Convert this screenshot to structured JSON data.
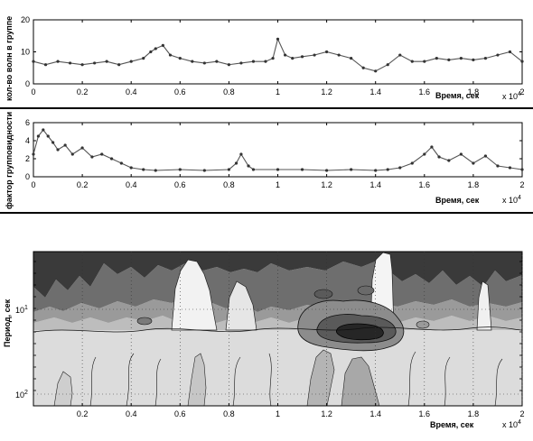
{
  "chart_data": [
    {
      "type": "line",
      "title": "",
      "xlabel": "Время, сек",
      "ylabel": "кол-во волн в группе",
      "x_multiplier": "x 10^4",
      "x_multiplier_base": "x 10",
      "x_multiplier_exp": "4",
      "xlim": [
        0,
        20000
      ],
      "ylim": [
        0,
        20
      ],
      "x_ticks": [
        "0",
        "0.2",
        "0.4",
        "0.6",
        "0.8",
        "1",
        "1.2",
        "1.4",
        "1.6",
        "1.8",
        "2"
      ],
      "y_ticks": [
        "0",
        "10",
        "20"
      ],
      "grid": false,
      "marker": "dot",
      "series": [
        {
          "x": [
            0,
            500,
            1000,
            1500,
            2000,
            2500,
            3000,
            3500,
            4000,
            4500,
            4800,
            5000,
            5300,
            5600,
            6000,
            6500,
            7000,
            7500,
            8000,
            8500,
            9000,
            9500,
            9800,
            10000,
            10300,
            10600,
            11000,
            11500,
            12000,
            12500,
            13000,
            13500,
            14000,
            14500,
            15000,
            15500,
            16000,
            16500,
            17000,
            17500,
            18000,
            18500,
            19000,
            19500,
            20000
          ],
          "values": [
            7,
            6,
            7,
            6.5,
            6,
            6.5,
            7,
            6,
            7,
            8,
            10,
            11,
            12,
            9,
            8,
            7,
            6.5,
            7,
            6,
            6.5,
            7,
            7,
            8,
            14,
            9,
            8,
            8.5,
            9,
            10,
            9,
            8,
            5,
            4,
            6,
            9,
            7,
            7,
            8,
            7.5,
            8,
            7.5,
            8,
            9,
            10,
            7
          ]
        }
      ]
    },
    {
      "type": "line",
      "title": "",
      "xlabel": "Время, сек",
      "ylabel": "фактор групповидности",
      "x_multiplier": "x 10^4",
      "x_multiplier_base": "x 10",
      "x_multiplier_exp": "4",
      "xlim": [
        0,
        20000
      ],
      "ylim": [
        0,
        6
      ],
      "x_ticks": [
        "0",
        "0.2",
        "0.4",
        "0.6",
        "0.8",
        "1",
        "1.2",
        "1.4",
        "1.6",
        "1.8",
        "2"
      ],
      "y_ticks": [
        "0",
        "2",
        "4",
        "6"
      ],
      "grid": false,
      "marker": "dot",
      "series": [
        {
          "x": [
            0,
            200,
            400,
            600,
            800,
            1000,
            1300,
            1600,
            2000,
            2400,
            2800,
            3200,
            3600,
            4000,
            4500,
            5000,
            6000,
            7000,
            8000,
            8300,
            8500,
            8800,
            9000,
            10000,
            11000,
            12000,
            13000,
            14000,
            14500,
            15000,
            15500,
            16000,
            16300,
            16600,
            17000,
            17500,
            18000,
            18500,
            19000,
            19500,
            20000
          ],
          "values": [
            2.5,
            4.5,
            5.2,
            4.5,
            3.8,
            3.0,
            3.5,
            2.5,
            3.2,
            2.2,
            2.5,
            2.0,
            1.5,
            1.0,
            0.8,
            0.7,
            0.8,
            0.7,
            0.8,
            1.5,
            2.5,
            1.2,
            0.8,
            0.8,
            0.8,
            0.7,
            0.8,
            0.7,
            0.8,
            1.0,
            1.5,
            2.5,
            3.3,
            2.2,
            1.8,
            2.5,
            1.5,
            2.3,
            1.2,
            1.0,
            0.8
          ]
        }
      ]
    },
    {
      "type": "heatmap",
      "title": "",
      "xlabel": "Время, сек",
      "ylabel": "Период, сек",
      "x_multiplier": "x 10^4",
      "x_multiplier_base": "x 10",
      "x_multiplier_exp": "4",
      "xlim": [
        0,
        20000
      ],
      "y_scale": "log",
      "y_ticks": [
        "10^1",
        "10^2"
      ],
      "x_ticks": [
        "0.2",
        "0.4",
        "0.6",
        "0.8",
        "1",
        "1.2",
        "1.4",
        "1.6",
        "1.8",
        "2"
      ],
      "grid": true,
      "colormap": "grayscale contour"
    }
  ]
}
